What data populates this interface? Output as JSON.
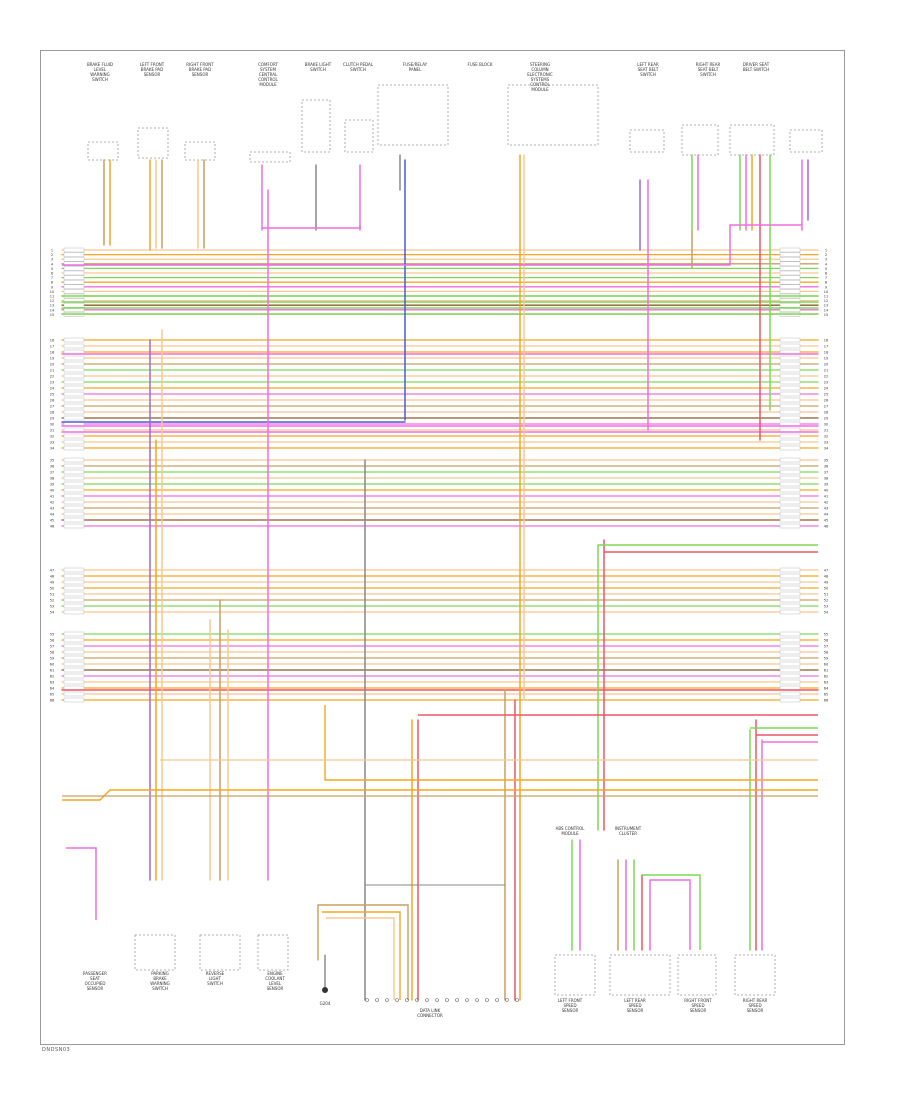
{
  "diagram": {
    "footer_code": "DNDSN03",
    "top_components": [
      "BRAKE FLUID LEVEL WARNING SWITCH",
      "LEFT FRONT BRAKE PAD SENSOR",
      "RIGHT FRONT BRAKE PAD SENSOR",
      "COMFORT SYSTEM CENTRAL CONTROL MODULE",
      "BRAKE LIGHT SWITCH",
      "CLUTCH PEDAL SWITCH",
      "FUSE/RELAY PANEL",
      "FUSE BLOCK",
      "STEERING COLUMN ELECTRONIC SYSTEMS CONTROL MODULE",
      "LEFT REAR SEAT BELT SWITCH",
      "RIGHT REAR SEAT BELT SWITCH",
      "DRIVER SEAT BELT SWITCH"
    ],
    "bottom_components": [
      "PASSENGER SEAT OCCUPIED SENSOR",
      "PARKING BRAKE WARNING SWITCH",
      "REVERSE LIGHT SWITCH",
      "ENGINE COOLANT LEVEL SENSOR",
      "G204",
      "DATA LINK CONNECTOR",
      "LEFT FRONT SPEED SENSOR",
      "LEFT REAR SPEED SENSOR",
      "RIGHT FRONT SPEED SENSOR",
      "RIGHT REAR SPEED SENSOR"
    ],
    "mid_labels": [
      "ABS CONTROL MODULE",
      "INSTRUMENT CLUSTER"
    ],
    "colors": {
      "orange": "#f5a623",
      "light_orange": "#f7c891",
      "tan": "#c8a060",
      "brown": "#8b5a2b",
      "green": "#7ed957",
      "pink": "#f06de0",
      "violet": "#a06ad0",
      "blue": "#4a5cd8",
      "red": "#ee5566",
      "gray": "#888888",
      "black": "#444444"
    }
  }
}
